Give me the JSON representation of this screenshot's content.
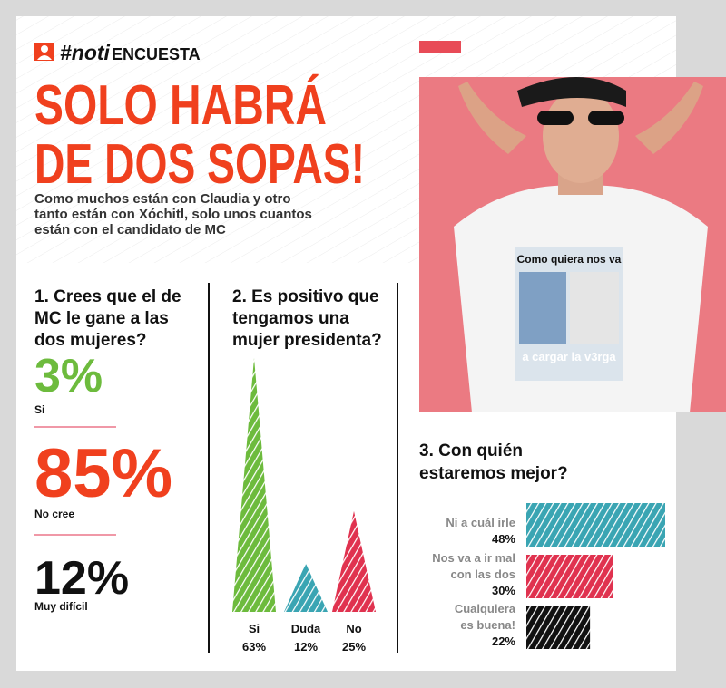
{
  "header": {
    "tag_prefix": "#noti",
    "tag_suffix": "ENCUESTA",
    "title": [
      "SOLO HABRÁ",
      "DE DOS SOPAS!"
    ],
    "subtitle": [
      "Como muchos están con Claudia y otro",
      "tanto están con Xóchitl, solo unos cuantos",
      "están con el candidato de MC"
    ]
  },
  "photo": {
    "shirt_text": [
      "Como quiera nos va",
      "a cargar la v3rga"
    ]
  },
  "chart_data": [
    {
      "type": "stat",
      "title": [
        "1. Crees que el de",
        "MC le gane a las",
        "dos mujeres?"
      ],
      "categories": [
        "Si",
        "No cree",
        "Muy difícil"
      ],
      "values": [
        3,
        85,
        12
      ],
      "value_labels": [
        "3%",
        "85%",
        "12%"
      ],
      "colors": [
        "#6dbb3d",
        "#f0401e",
        "#111111"
      ]
    },
    {
      "type": "bar",
      "title": [
        "2. Es positivo que",
        "tengamos una",
        "mujer presidenta?"
      ],
      "categories": [
        "Si",
        "Duda",
        "No"
      ],
      "values": [
        63,
        12,
        25
      ],
      "value_labels": [
        "63%",
        "12%",
        "25%"
      ],
      "colors": [
        "#6dbb3d",
        "#3aa5b3",
        "#e0324f"
      ]
    },
    {
      "type": "barh",
      "title": [
        "3. Con quién",
        "estaremos mejor?"
      ],
      "categories": [
        [
          "Ni a cuál irle"
        ],
        [
          "Nos va a ir mal",
          "con las dos"
        ],
        [
          "Cualquiera",
          "es buena!"
        ]
      ],
      "values": [
        48,
        30,
        22
      ],
      "value_labels": [
        "48%",
        "30%",
        "22%"
      ],
      "colors": [
        "#3aa5b3",
        "#e0324f",
        "#111111"
      ]
    }
  ]
}
